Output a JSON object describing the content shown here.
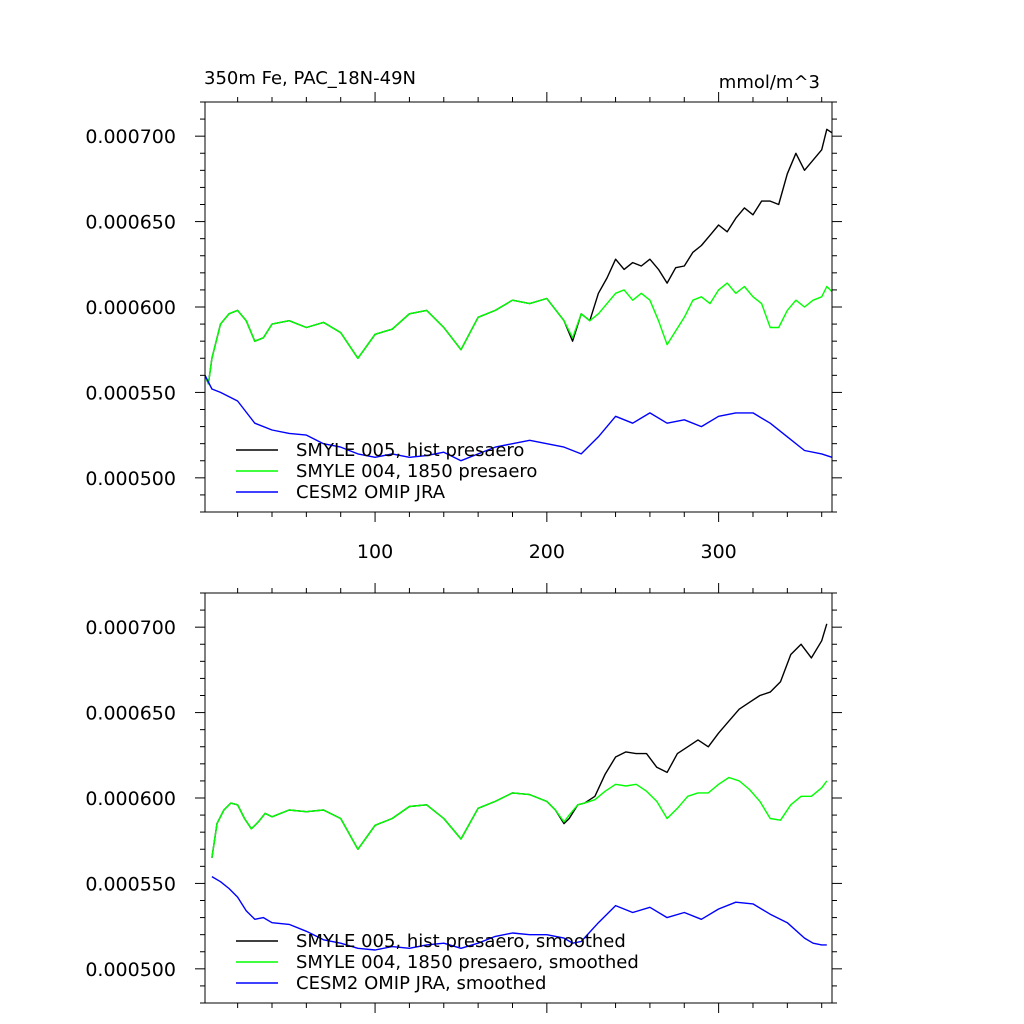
{
  "figure": {
    "title_left": "350m Fe, PAC_18N-49N",
    "title_right": "mmol/m^3"
  },
  "chart_data": [
    {
      "type": "line",
      "xlim": [
        1,
        366
      ],
      "ylim": [
        0.00048,
        0.00072
      ],
      "x_ticks": [
        100,
        200,
        300
      ],
      "x_tick_labels": [
        "100",
        "200",
        "300"
      ],
      "y_ticks": [
        0.0005,
        0.00055,
        0.0006,
        0.00065,
        0.0007
      ],
      "y_tick_labels": [
        "0.000500",
        "0.000550",
        "0.000600",
        "0.000650",
        "0.000700"
      ],
      "grid": false,
      "legend_position": "bottom-left",
      "series": [
        {
          "name": "SMYLE 005, hist presaero",
          "color": "#000000",
          "x": [
            1,
            3,
            5,
            10,
            15,
            20,
            25,
            30,
            35,
            40,
            50,
            60,
            70,
            80,
            90,
            100,
            110,
            120,
            130,
            140,
            150,
            160,
            170,
            180,
            190,
            200,
            210,
            215,
            220,
            225,
            230,
            235,
            240,
            245,
            250,
            255,
            260,
            265,
            270,
            275,
            280,
            285,
            290,
            295,
            300,
            305,
            310,
            315,
            320,
            325,
            330,
            335,
            340,
            345,
            350,
            355,
            360,
            363,
            366
          ],
          "y": [
            0.00056,
            0.000555,
            0.00057,
            0.00059,
            0.000596,
            0.000598,
            0.000592,
            0.00058,
            0.000582,
            0.00059,
            0.000592,
            0.000588,
            0.000591,
            0.000585,
            0.00057,
            0.000584,
            0.000587,
            0.000596,
            0.000598,
            0.000588,
            0.000575,
            0.000594,
            0.000598,
            0.000604,
            0.000602,
            0.000605,
            0.000592,
            0.00058,
            0.000596,
            0.000592,
            0.000608,
            0.000617,
            0.000628,
            0.000622,
            0.000626,
            0.000624,
            0.000628,
            0.000622,
            0.000614,
            0.000623,
            0.000624,
            0.000632,
            0.000636,
            0.000642,
            0.000648,
            0.000644,
            0.000652,
            0.000658,
            0.000654,
            0.000662,
            0.000662,
            0.00066,
            0.000678,
            0.00069,
            0.00068,
            0.000686,
            0.000692,
            0.000704,
            0.000702
          ]
        },
        {
          "name": "SMYLE 004, 1850 presaero",
          "color": "#00ff00",
          "x": [
            1,
            3,
            5,
            10,
            15,
            20,
            25,
            30,
            35,
            40,
            50,
            60,
            70,
            80,
            90,
            100,
            110,
            120,
            130,
            140,
            150,
            160,
            170,
            180,
            190,
            200,
            210,
            215,
            220,
            225,
            230,
            235,
            240,
            245,
            250,
            255,
            260,
            265,
            270,
            275,
            280,
            285,
            290,
            295,
            300,
            305,
            310,
            315,
            320,
            325,
            330,
            335,
            340,
            345,
            350,
            355,
            360,
            363,
            366
          ],
          "y": [
            0.00056,
            0.000555,
            0.00057,
            0.00059,
            0.000596,
            0.000598,
            0.000592,
            0.00058,
            0.000582,
            0.00059,
            0.000592,
            0.000588,
            0.000591,
            0.000585,
            0.00057,
            0.000584,
            0.000587,
            0.000596,
            0.000598,
            0.000588,
            0.000575,
            0.000594,
            0.000598,
            0.000604,
            0.000602,
            0.000605,
            0.000592,
            0.000582,
            0.000596,
            0.000592,
            0.000596,
            0.000602,
            0.000608,
            0.00061,
            0.000604,
            0.000608,
            0.000604,
            0.000592,
            0.000578,
            0.000586,
            0.000594,
            0.000604,
            0.000606,
            0.000602,
            0.00061,
            0.000614,
            0.000608,
            0.000612,
            0.000606,
            0.000602,
            0.000588,
            0.000588,
            0.000598,
            0.000604,
            0.0006,
            0.000604,
            0.000606,
            0.000612,
            0.000609
          ]
        },
        {
          "name": "CESM2 OMIP JRA",
          "color": "#0000ff",
          "x": [
            1,
            5,
            10,
            20,
            30,
            40,
            50,
            60,
            70,
            80,
            90,
            100,
            110,
            120,
            130,
            140,
            150,
            160,
            170,
            180,
            190,
            200,
            210,
            220,
            230,
            240,
            250,
            260,
            270,
            280,
            290,
            300,
            310,
            320,
            330,
            340,
            350,
            360,
            366
          ],
          "y": [
            0.00056,
            0.000552,
            0.00055,
            0.000545,
            0.000532,
            0.000528,
            0.000526,
            0.000525,
            0.00052,
            0.000518,
            0.000514,
            0.000512,
            0.000514,
            0.000512,
            0.000513,
            0.000515,
            0.00051,
            0.000514,
            0.000518,
            0.00052,
            0.000522,
            0.00052,
            0.000518,
            0.000514,
            0.000524,
            0.000536,
            0.000532,
            0.000538,
            0.000532,
            0.000534,
            0.00053,
            0.000536,
            0.000538,
            0.000538,
            0.000532,
            0.000524,
            0.000516,
            0.000514,
            0.000512
          ]
        }
      ]
    },
    {
      "type": "line",
      "xlim": [
        1,
        366
      ],
      "ylim": [
        0.00048,
        0.00072
      ],
      "x_ticks": [
        100,
        200,
        300
      ],
      "x_tick_labels": [],
      "y_ticks": [
        0.0005,
        0.00055,
        0.0006,
        0.00065,
        0.0007
      ],
      "y_tick_labels": [
        "0.000500",
        "0.000550",
        "0.000600",
        "0.000650",
        "0.000700"
      ],
      "grid": false,
      "legend_position": "bottom-left",
      "series": [
        {
          "name": "SMYLE 005, hist presaero, smoothed",
          "color": "#000000",
          "x": [
            5,
            8,
            12,
            16,
            20,
            24,
            28,
            32,
            36,
            40,
            50,
            60,
            70,
            80,
            90,
            100,
            110,
            120,
            130,
            140,
            150,
            160,
            170,
            180,
            190,
            200,
            205,
            210,
            213,
            218,
            222,
            228,
            234,
            240,
            246,
            252,
            258,
            264,
            270,
            276,
            282,
            288,
            294,
            300,
            306,
            312,
            318,
            324,
            330,
            336,
            342,
            348,
            354,
            360,
            363
          ],
          "y": [
            0.000565,
            0.000585,
            0.000593,
            0.000597,
            0.000596,
            0.000588,
            0.000582,
            0.000586,
            0.000591,
            0.000589,
            0.000593,
            0.000592,
            0.000593,
            0.000588,
            0.00057,
            0.000584,
            0.000588,
            0.000595,
            0.000596,
            0.000588,
            0.000576,
            0.000594,
            0.000598,
            0.000603,
            0.000602,
            0.000598,
            0.000593,
            0.000585,
            0.000588,
            0.000596,
            0.000597,
            0.000601,
            0.000614,
            0.000624,
            0.000627,
            0.000626,
            0.000626,
            0.000618,
            0.000615,
            0.000626,
            0.00063,
            0.000634,
            0.00063,
            0.000638,
            0.000645,
            0.000652,
            0.000656,
            0.00066,
            0.000662,
            0.000668,
            0.000684,
            0.00069,
            0.000682,
            0.000692,
            0.000702
          ]
        },
        {
          "name": "SMYLE 004, 1850 presaero, smoothed",
          "color": "#00ff00",
          "x": [
            5,
            8,
            12,
            16,
            20,
            24,
            28,
            32,
            36,
            40,
            50,
            60,
            70,
            80,
            90,
            100,
            110,
            120,
            130,
            140,
            150,
            160,
            170,
            180,
            190,
            200,
            205,
            210,
            213,
            218,
            222,
            228,
            234,
            240,
            246,
            252,
            258,
            264,
            270,
            276,
            282,
            288,
            294,
            300,
            306,
            312,
            318,
            324,
            330,
            336,
            342,
            348,
            354,
            360,
            363
          ],
          "y": [
            0.000565,
            0.000585,
            0.000593,
            0.000597,
            0.000596,
            0.000588,
            0.000582,
            0.000586,
            0.000591,
            0.000589,
            0.000593,
            0.000592,
            0.000593,
            0.000588,
            0.00057,
            0.000584,
            0.000588,
            0.000595,
            0.000596,
            0.000588,
            0.000576,
            0.000594,
            0.000598,
            0.000603,
            0.000602,
            0.000598,
            0.000593,
            0.000586,
            0.00059,
            0.000596,
            0.000597,
            0.000599,
            0.000604,
            0.000608,
            0.000607,
            0.000608,
            0.000604,
            0.000598,
            0.000588,
            0.000594,
            0.000601,
            0.000603,
            0.000603,
            0.000608,
            0.000612,
            0.00061,
            0.000605,
            0.000598,
            0.000588,
            0.000587,
            0.000596,
            0.000601,
            0.000601,
            0.000606,
            0.00061
          ]
        },
        {
          "name": "CESM2 OMIP JRA, smoothed",
          "color": "#0000ff",
          "x": [
            5,
            10,
            15,
            20,
            25,
            30,
            35,
            40,
            50,
            60,
            70,
            80,
            90,
            100,
            110,
            120,
            130,
            140,
            150,
            160,
            170,
            180,
            190,
            200,
            210,
            215,
            220,
            230,
            240,
            250,
            260,
            270,
            280,
            290,
            300,
            310,
            320,
            330,
            340,
            350,
            355,
            360,
            363
          ],
          "y": [
            0.000554,
            0.000551,
            0.000547,
            0.000542,
            0.000534,
            0.000529,
            0.00053,
            0.000527,
            0.000526,
            0.000522,
            0.000517,
            0.000515,
            0.000512,
            0.000511,
            0.000513,
            0.000512,
            0.000514,
            0.000515,
            0.000512,
            0.000515,
            0.000519,
            0.000521,
            0.00052,
            0.00052,
            0.000518,
            0.000515,
            0.000516,
            0.000527,
            0.000537,
            0.000533,
            0.000536,
            0.00053,
            0.000533,
            0.000529,
            0.000535,
            0.000539,
            0.000538,
            0.000532,
            0.000527,
            0.000518,
            0.000515,
            0.000514,
            0.000514
          ]
        }
      ]
    }
  ]
}
